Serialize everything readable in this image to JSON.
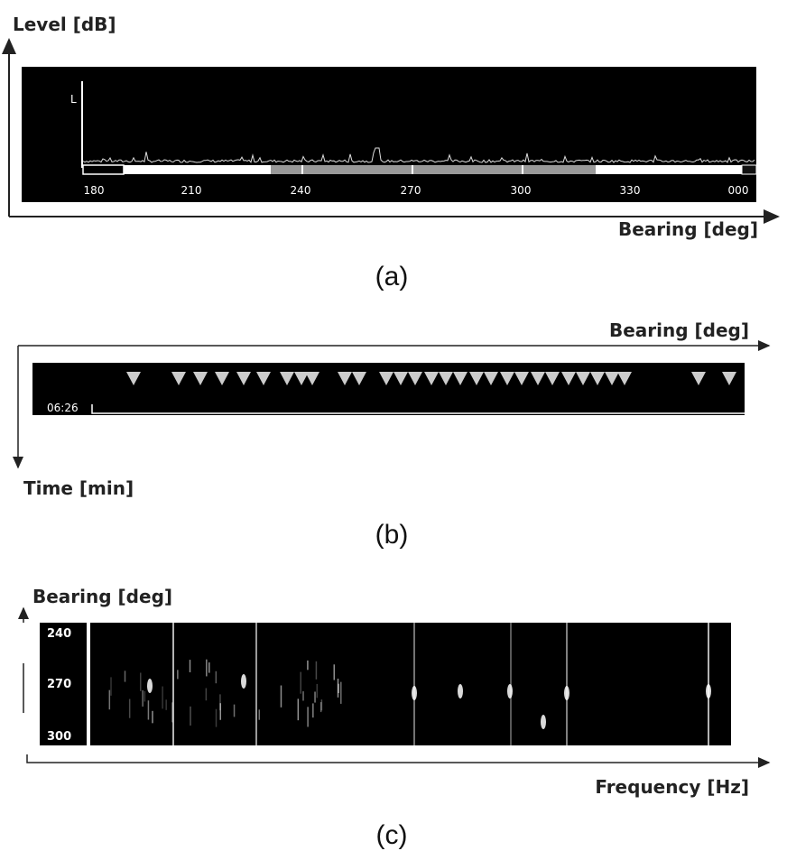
{
  "panels": [
    {
      "y_axis_label": "Level [dB]",
      "marker": "L",
      "ticks": [
        "180",
        "210",
        "240",
        "270",
        "300",
        "330",
        "000"
      ],
      "x_axis_label": "Bearing [deg]",
      "caption": "(a)"
    },
    {
      "x_axis_label": "Bearing [deg]",
      "time": "06:26",
      "y_axis_label": "Time [min]",
      "caption": "(b)"
    },
    {
      "y_axis_label": "Bearing [deg]",
      "ticks": [
        "240",
        "270",
        "300"
      ],
      "x_axis_label": "Frequency [Hz]",
      "caption": "(c)"
    }
  ]
}
